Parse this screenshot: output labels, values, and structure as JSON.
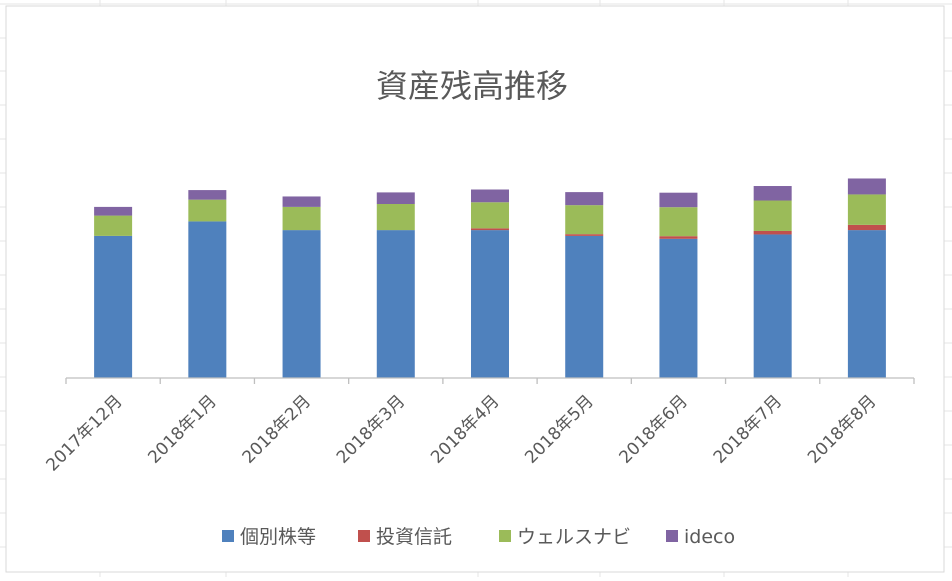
{
  "chart_data": {
    "type": "bar",
    "stacked": true,
    "title": "資産残高推移",
    "xlabel": "",
    "ylabel": "",
    "ylim": [
      0,
      100
    ],
    "grid": false,
    "legend_position": "bottom",
    "categories": [
      "2017年12月",
      "2018年1月",
      "2018年2月",
      "2018年3月",
      "2018年4月",
      "2018年5月",
      "2018年6月",
      "2018年7月",
      "2018年8月"
    ],
    "series": [
      {
        "name": "個別株等",
        "color": "#4f81bd",
        "values": [
          49,
          54,
          51,
          51,
          51,
          49,
          48,
          49.5,
          51
        ]
      },
      {
        "name": "投資信託",
        "color": "#c0504d",
        "values": [
          0,
          0,
          0,
          0,
          0.6,
          0.6,
          0.9,
          1.2,
          1.8
        ]
      },
      {
        "name": "ウェルスナビ",
        "color": "#9bbb59",
        "values": [
          7,
          7.5,
          8,
          9,
          9,
          10,
          10,
          10.5,
          10.5
        ]
      },
      {
        "name": "ideco",
        "color": "#8064a2",
        "values": [
          3,
          3.3,
          3.6,
          4,
          4.4,
          4.5,
          5,
          5,
          5.5
        ]
      }
    ]
  }
}
